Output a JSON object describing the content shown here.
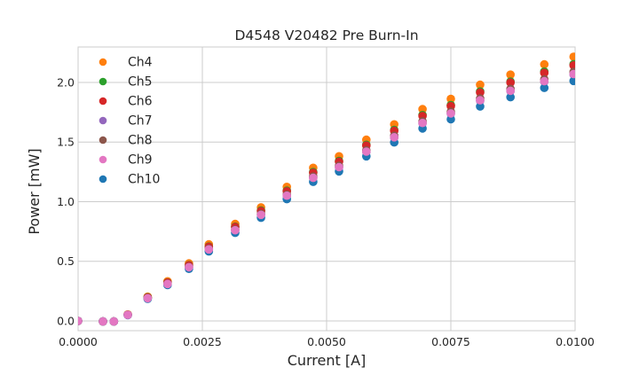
{
  "figure": {
    "background": "#ffffff"
  },
  "chart_data": {
    "type": "scatter",
    "title": "D4548 V20482 Pre Burn-In",
    "xlabel": "Current [A]",
    "ylabel": "Power [mW]",
    "xlim": [
      0.0,
      0.01
    ],
    "ylim": [
      -0.082,
      2.297
    ],
    "grid": true,
    "legend_position": "upper left",
    "style": {
      "grid_color": "#cccccc",
      "spine_color": "#cccccc",
      "text_color": "#262626",
      "background": "#ffffff"
    },
    "xticks": {
      "values": [
        0.0,
        0.0025,
        0.005,
        0.0075,
        0.01
      ],
      "labels": [
        "0.0000",
        "0.0025",
        "0.0050",
        "0.0075",
        "0.0100"
      ]
    },
    "yticks": {
      "values": [
        0.0,
        0.5,
        1.0,
        1.5,
        2.0
      ],
      "labels": [
        "0.0",
        "0.5",
        "1.0",
        "1.5",
        "2.0"
      ]
    },
    "x": [
      0.0,
      0.0005,
      0.00072,
      0.001,
      0.0014,
      0.0018,
      0.00223,
      0.00263,
      0.00316,
      0.00368,
      0.0042,
      0.00473,
      0.00525,
      0.0058,
      0.00636,
      0.00693,
      0.0075,
      0.00809,
      0.0087,
      0.00938,
      0.00997
    ],
    "series": [
      {
        "name": "Ch4",
        "color": "#ff7f0e",
        "values": [
          0,
          -0.005,
          -0.005,
          0.054,
          0.203,
          0.332,
          0.482,
          0.642,
          0.813,
          0.952,
          1.124,
          1.284,
          1.38,
          1.519,
          1.648,
          1.776,
          1.862,
          1.98,
          2.065,
          2.151,
          2.215
        ]
      },
      {
        "name": "Ch5",
        "color": "#2ca02c",
        "values": [
          0,
          -0.005,
          -0.005,
          0.052,
          0.198,
          0.322,
          0.468,
          0.624,
          0.79,
          0.926,
          1.092,
          1.248,
          1.342,
          1.477,
          1.602,
          1.726,
          1.81,
          1.924,
          2.007,
          2.09,
          2.153
        ]
      },
      {
        "name": "Ch6",
        "color": "#d62728",
        "values": [
          0,
          -0.005,
          -0.005,
          0.052,
          0.197,
          0.321,
          0.466,
          0.621,
          0.787,
          0.921,
          1.087,
          1.242,
          1.335,
          1.47,
          1.594,
          1.718,
          1.801,
          1.915,
          1.998,
          2.08,
          2.142
        ]
      },
      {
        "name": "Ch7",
        "color": "#9467bd",
        "values": [
          0,
          -0.005,
          -0.005,
          0.05,
          0.19,
          0.309,
          0.449,
          0.599,
          0.758,
          0.888,
          1.048,
          1.198,
          1.287,
          1.417,
          1.537,
          1.657,
          1.737,
          1.846,
          1.926,
          2.006,
          2.066
        ]
      },
      {
        "name": "Ch8",
        "color": "#8c564b",
        "values": [
          0,
          -0.005,
          -0.005,
          0.05,
          0.192,
          0.312,
          0.454,
          0.605,
          0.766,
          0.897,
          1.058,
          1.21,
          1.3,
          1.431,
          1.552,
          1.673,
          1.754,
          1.865,
          1.945,
          2.026,
          2.087
        ]
      },
      {
        "name": "Ch9",
        "color": "#e377c2",
        "values": [
          0,
          -0.005,
          -0.005,
          0.05,
          0.19,
          0.31,
          0.45,
          0.6,
          0.76,
          0.89,
          1.05,
          1.2,
          1.29,
          1.42,
          1.54,
          1.66,
          1.74,
          1.85,
          1.93,
          2.01,
          2.07
        ]
      },
      {
        "name": "Ch10",
        "color": "#1f77b4",
        "values": [
          0,
          -0.005,
          -0.005,
          0.049,
          0.185,
          0.301,
          0.437,
          0.583,
          0.739,
          0.865,
          1.021,
          1.166,
          1.254,
          1.38,
          1.497,
          1.614,
          1.691,
          1.798,
          1.876,
          1.954,
          2.012
        ]
      }
    ]
  }
}
